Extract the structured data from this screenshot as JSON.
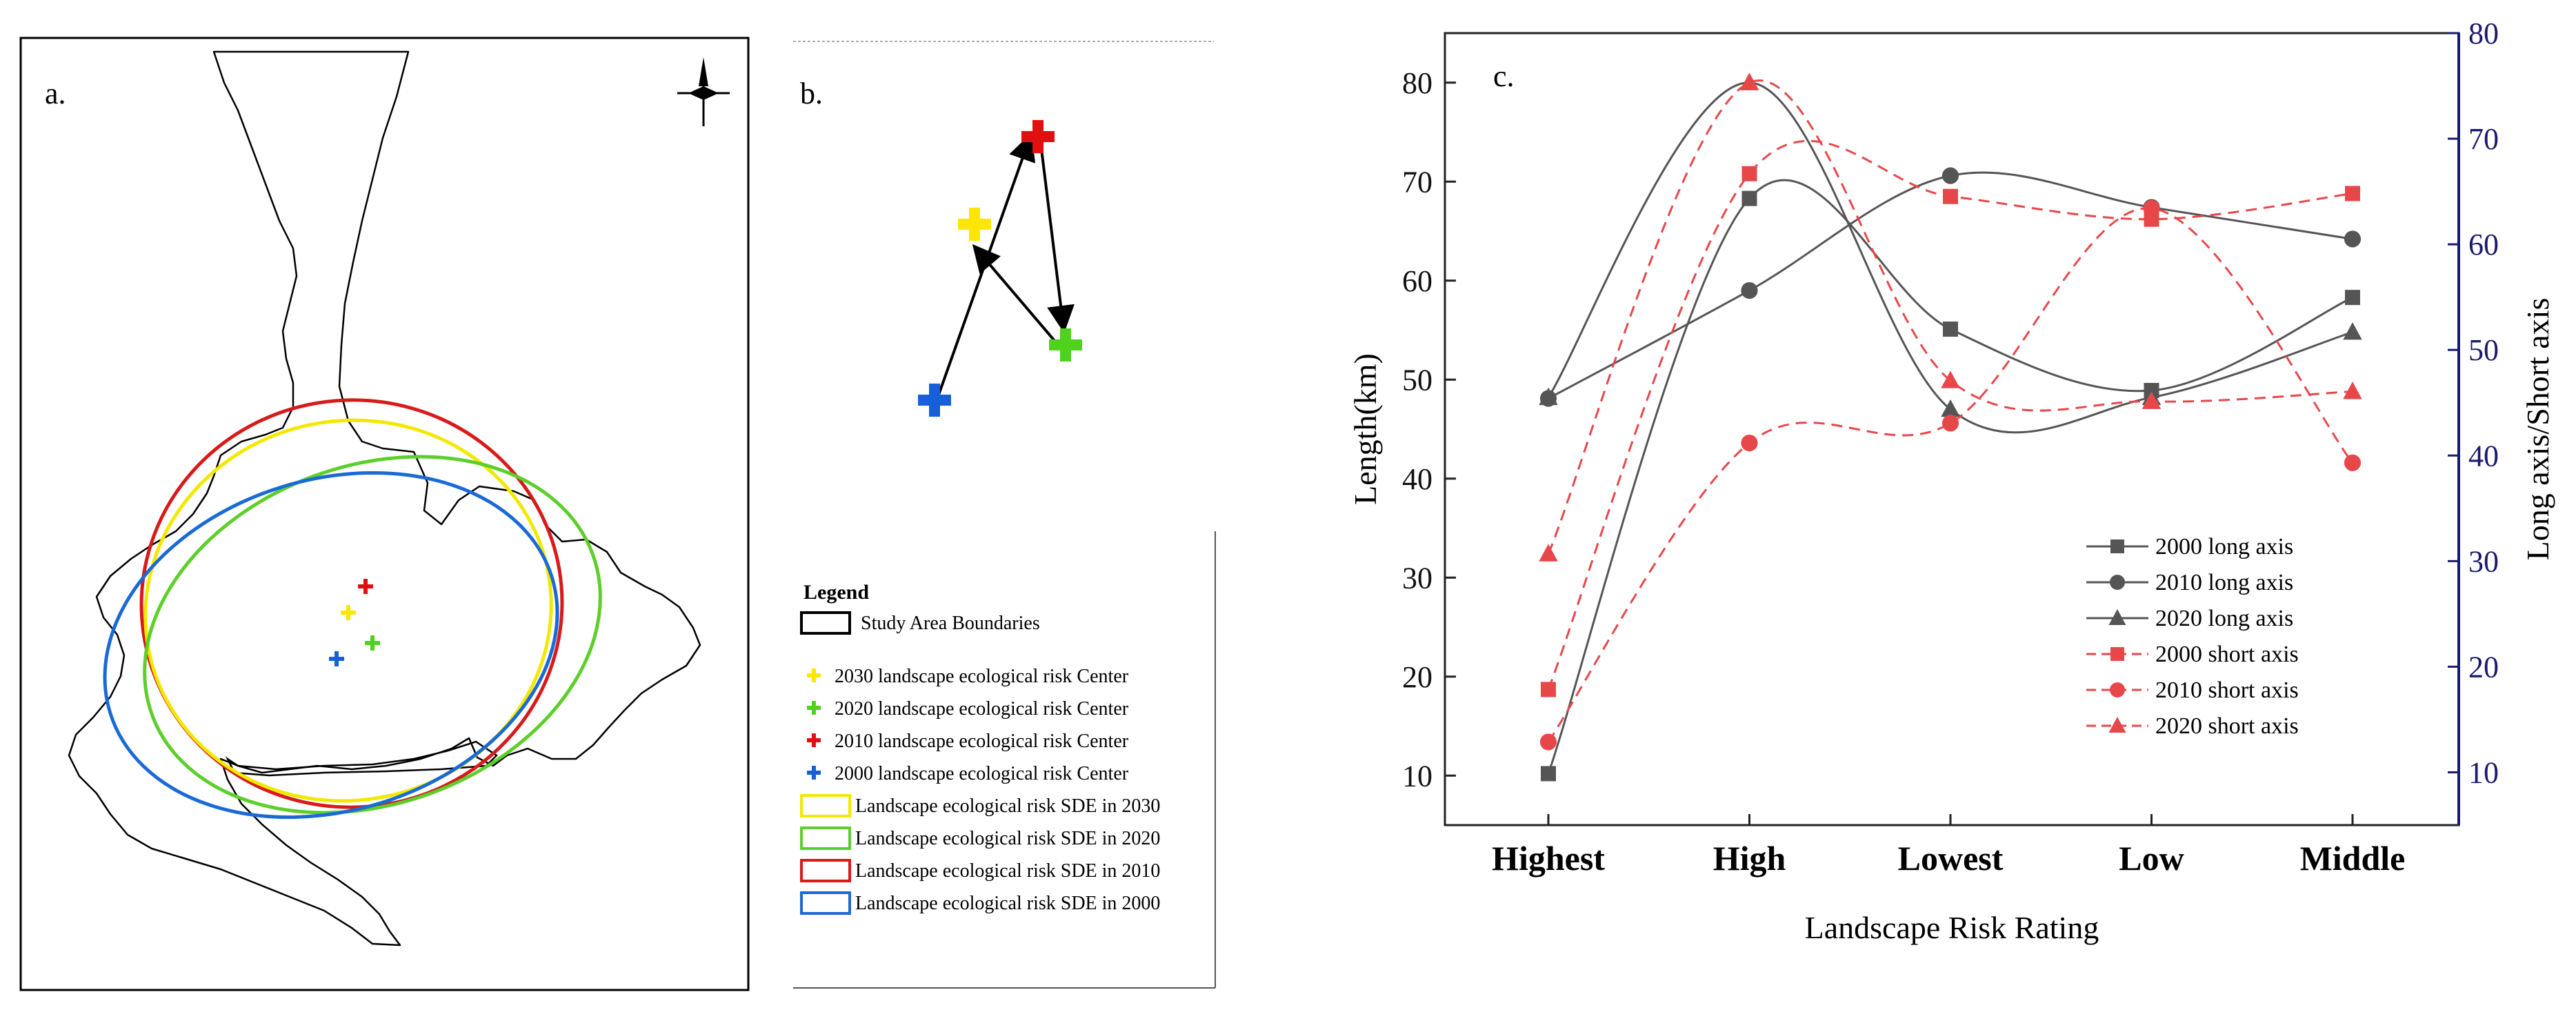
{
  "panel_a": {
    "label": "a.",
    "legend": {
      "title": "Legend",
      "items": [
        {
          "kind": "box",
          "text": "Study Area Boundaries",
          "color": "#000000"
        },
        {
          "kind": "cross",
          "text": "2030 landscape ecological risk Center",
          "color": "#ffe600"
        },
        {
          "kind": "cross",
          "text": "2020 landscape ecological risk Center",
          "color": "#4fd21e"
        },
        {
          "kind": "cross",
          "text": "2010 landscape ecological risk Center",
          "color": "#e01010"
        },
        {
          "kind": "cross",
          "text": "2000 landscape ecological risk Center",
          "color": "#1560d8"
        },
        {
          "kind": "box",
          "text": "Landscape ecological risk SDE in 2030",
          "color": "#f2e800"
        },
        {
          "kind": "box",
          "text": "Landscape ecological risk SDE in 2020",
          "color": "#5ccf2a"
        },
        {
          "kind": "box",
          "text": "Landscape ecological risk SDE in 2010",
          "color": "#d81a1a"
        },
        {
          "kind": "box",
          "text": "Landscape ecological risk SDE in 2000",
          "color": "#1a6ad6"
        }
      ]
    }
  },
  "panel_b": {
    "label": "b."
  },
  "panel_c": {
    "label": "c."
  },
  "chart_data": {
    "type": "line",
    "title": "",
    "xlabel": "Landscape Risk Rating",
    "ylabel": "Length(km)",
    "y2label": "Long axis/Short axis",
    "categories": [
      "Highest",
      "High",
      "Lowest",
      "Low",
      "Middle"
    ],
    "ylim": [
      5,
      85
    ],
    "y2lim": [
      5,
      80
    ],
    "yticks": [
      10,
      20,
      30,
      40,
      50,
      60,
      70,
      80
    ],
    "y2ticks": [
      10,
      20,
      30,
      40,
      50,
      60,
      70,
      80
    ],
    "series": [
      {
        "name": "2000 long axis",
        "marker": "square",
        "color": "#555555",
        "dash": false,
        "values": [
          10.2,
          68.3,
          55.1,
          48.9,
          58.3
        ]
      },
      {
        "name": "2010 long axis",
        "marker": "circle",
        "color": "#555555",
        "dash": false,
        "values": [
          48.1,
          59.0,
          70.6,
          67.4,
          64.2
        ]
      },
      {
        "name": "2020 long axis",
        "marker": "triangle",
        "color": "#555555",
        "dash": false,
        "values": [
          48.2,
          80.0,
          47.0,
          48.2,
          54.8
        ]
      },
      {
        "name": "2000 short axis",
        "marker": "square",
        "color": "#e8474a",
        "dash": true,
        "values": [
          18.7,
          70.8,
          68.5,
          66.2,
          68.8
        ]
      },
      {
        "name": "2010 short axis",
        "marker": "circle",
        "color": "#e8474a",
        "dash": true,
        "values": [
          13.4,
          43.6,
          45.6,
          67.3,
          41.6
        ]
      },
      {
        "name": "2020 short axis",
        "marker": "triangle",
        "color": "#e8474a",
        "dash": true,
        "values": [
          32.4,
          80.0,
          49.9,
          47.8,
          48.8
        ]
      }
    ],
    "legend_position": "bottom-right"
  }
}
